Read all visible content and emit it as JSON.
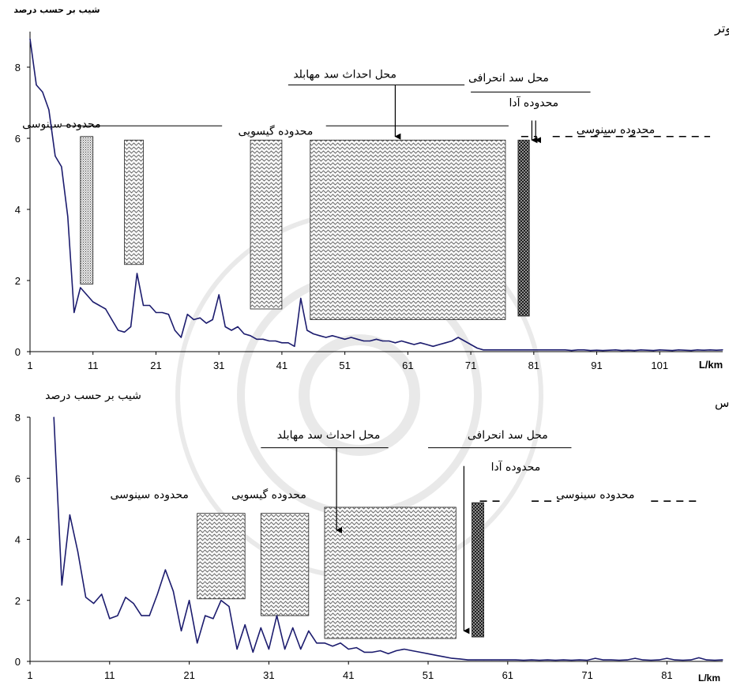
{
  "chart_data": [
    {
      "type": "line",
      "title": "کوتر",
      "ylabel": "شیب بر حسب درصد",
      "xlabel": "L/km",
      "xlim": [
        1,
        111
      ],
      "ylim": [
        0,
        9
      ],
      "x_ticks": [
        "1",
        "11",
        "21",
        "31",
        "41",
        "51",
        "61",
        "71",
        "81",
        "91",
        "101"
      ],
      "y_ticks": [
        "0",
        "2",
        "4",
        "6",
        "8"
      ],
      "grid": false,
      "line_color": "#1c1c6e",
      "series": [
        {
          "points": [
            [
              1,
              8.8
            ],
            [
              2,
              7.5
            ],
            [
              3,
              7.3
            ],
            [
              4,
              6.8
            ],
            [
              5,
              5.5
            ],
            [
              6,
              5.2
            ],
            [
              7,
              3.8
            ],
            [
              8,
              1.1
            ],
            [
              9,
              1.8
            ],
            [
              10,
              1.6
            ],
            [
              11,
              1.4
            ],
            [
              12,
              1.3
            ],
            [
              13,
              1.2
            ],
            [
              14,
              0.9
            ],
            [
              15,
              0.6
            ],
            [
              16,
              0.55
            ],
            [
              17,
              0.7
            ],
            [
              18,
              2.2
            ],
            [
              19,
              1.3
            ],
            [
              20,
              1.3
            ],
            [
              21,
              1.1
            ],
            [
              22,
              1.1
            ],
            [
              23,
              1.05
            ],
            [
              24,
              0.6
            ],
            [
              25,
              0.4
            ],
            [
              26,
              1.05
            ],
            [
              27,
              0.9
            ],
            [
              28,
              0.95
            ],
            [
              29,
              0.8
            ],
            [
              30,
              0.9
            ],
            [
              31,
              1.6
            ],
            [
              32,
              0.7
            ],
            [
              33,
              0.6
            ],
            [
              34,
              0.7
            ],
            [
              35,
              0.5
            ],
            [
              36,
              0.45
            ],
            [
              37,
              0.35
            ],
            [
              38,
              0.35
            ],
            [
              39,
              0.3
            ],
            [
              40,
              0.3
            ],
            [
              41,
              0.25
            ],
            [
              42,
              0.25
            ],
            [
              43,
              0.15
            ],
            [
              44,
              1.5
            ],
            [
              45,
              0.6
            ],
            [
              46,
              0.5
            ],
            [
              47,
              0.45
            ],
            [
              48,
              0.4
            ],
            [
              49,
              0.45
            ],
            [
              50,
              0.4
            ],
            [
              51,
              0.35
            ],
            [
              52,
              0.4
            ],
            [
              53,
              0.35
            ],
            [
              54,
              0.3
            ],
            [
              55,
              0.3
            ],
            [
              56,
              0.35
            ],
            [
              57,
              0.3
            ],
            [
              58,
              0.3
            ],
            [
              59,
              0.25
            ],
            [
              60,
              0.3
            ],
            [
              61,
              0.25
            ],
            [
              62,
              0.2
            ],
            [
              63,
              0.25
            ],
            [
              64,
              0.2
            ],
            [
              65,
              0.15
            ],
            [
              66,
              0.2
            ],
            [
              67,
              0.25
            ],
            [
              68,
              0.3
            ],
            [
              69,
              0.4
            ],
            [
              70,
              0.3
            ],
            [
              71,
              0.2
            ],
            [
              72,
              0.1
            ],
            [
              73,
              0.05
            ],
            [
              74,
              0.05
            ],
            [
              75,
              0.05
            ],
            [
              76,
              0.05
            ],
            [
              77,
              0.05
            ],
            [
              78,
              0.05
            ],
            [
              79,
              0.05
            ],
            [
              80,
              0.05
            ],
            [
              81,
              0.05
            ],
            [
              82,
              0.05
            ],
            [
              83,
              0.05
            ],
            [
              84,
              0.05
            ],
            [
              85,
              0.05
            ],
            [
              86,
              0.05
            ],
            [
              87,
              0.03
            ],
            [
              88,
              0.05
            ],
            [
              89,
              0.05
            ],
            [
              90,
              0.03
            ],
            [
              91,
              0.04
            ],
            [
              92,
              0.03
            ],
            [
              93,
              0.04
            ],
            [
              94,
              0.05
            ],
            [
              95,
              0.03
            ],
            [
              96,
              0.04
            ],
            [
              97,
              0.03
            ],
            [
              98,
              0.05
            ],
            [
              99,
              0.04
            ],
            [
              100,
              0.03
            ],
            [
              101,
              0.05
            ],
            [
              102,
              0.04
            ],
            [
              103,
              0.03
            ],
            [
              104,
              0.05
            ],
            [
              105,
              0.04
            ],
            [
              106,
              0.03
            ],
            [
              107,
              0.05
            ],
            [
              108,
              0.04
            ],
            [
              109,
              0.05
            ],
            [
              110,
              0.04
            ],
            [
              111,
              0.05
            ]
          ]
        }
      ],
      "zones": [
        {
          "x0": 9,
          "x1": 11,
          "y0": 1.9,
          "y1": 6.05,
          "fill": "dots"
        },
        {
          "x0": 16,
          "x1": 19,
          "y0": 2.45,
          "y1": 5.95,
          "fill": "wave"
        },
        {
          "x0": 36,
          "x1": 41,
          "y0": 1.2,
          "y1": 5.95,
          "fill": "wave"
        },
        {
          "x0": 45.5,
          "x1": 76.5,
          "y0": 0.9,
          "y1": 5.95,
          "fill": "wave"
        },
        {
          "x0": 78.5,
          "x1": 80.3,
          "y0": 1.0,
          "y1": 5.95,
          "fill": "cross"
        }
      ],
      "annotations": [
        {
          "text": "محدوده سینوسی",
          "x": 6,
          "y": 6.3,
          "line": [
            6,
            31.5,
            6.35
          ]
        },
        {
          "text": "محدوده گیسویی",
          "x": 40,
          "y": 6.1
        },
        {
          "text": "محل احداث سد مهابلد",
          "x": 51,
          "y": 7.7,
          "line": [
            42,
            70,
            7.5
          ]
        },
        {
          "text": "محل سد انحرافی",
          "x": 77,
          "y": 7.6,
          "line": [
            71,
            90,
            7.3
          ]
        },
        {
          "text": "محدوده آدا",
          "x": 81,
          "y": 6.9
        },
        {
          "text": "محدوده سینوسی",
          "x": 94,
          "y": 6.15
        }
      ],
      "dashes": [
        [
          79,
          81.5,
          6.05
        ],
        [
          84,
          109,
          6.05
        ]
      ],
      "arrows": [
        [
          59,
          7.5,
          6.05
        ],
        [
          80.7,
          6.5,
          5.95
        ],
        [
          81.3,
          6.5,
          5.95
        ]
      ],
      "lines": [
        [
          48,
          77,
          6.35
        ]
      ]
    },
    {
      "type": "line",
      "title": "بیطاس",
      "ylabel": "شیب بر حسب درصد",
      "xlabel": "L/km",
      "xlim": [
        1,
        88
      ],
      "ylim": [
        0,
        8
      ],
      "x_ticks": [
        "1",
        "11",
        "21",
        "31",
        "41",
        "51",
        "61",
        "71",
        "81"
      ],
      "y_ticks": [
        "0",
        "2",
        "4",
        "6",
        "8"
      ],
      "grid": false,
      "line_color": "#1c1c6e",
      "series": [
        {
          "points": [
            [
              4,
              8.0
            ],
            [
              5,
              2.5
            ],
            [
              6,
              4.8
            ],
            [
              7,
              3.6
            ],
            [
              8,
              2.1
            ],
            [
              9,
              1.9
            ],
            [
              10,
              2.2
            ],
            [
              11,
              1.4
            ],
            [
              12,
              1.5
            ],
            [
              13,
              2.1
            ],
            [
              14,
              1.9
            ],
            [
              15,
              1.5
            ],
            [
              16,
              1.5
            ],
            [
              17,
              2.2
            ],
            [
              18,
              3.0
            ],
            [
              19,
              2.3
            ],
            [
              20,
              1.0
            ],
            [
              21,
              2.0
            ],
            [
              22,
              0.6
            ],
            [
              23,
              1.5
            ],
            [
              24,
              1.4
            ],
            [
              25,
              2.0
            ],
            [
              26,
              1.8
            ],
            [
              27,
              0.4
            ],
            [
              28,
              1.2
            ],
            [
              29,
              0.3
            ],
            [
              30,
              1.1
            ],
            [
              31,
              0.4
            ],
            [
              32,
              1.5
            ],
            [
              33,
              0.4
            ],
            [
              34,
              1.1
            ],
            [
              35,
              0.4
            ],
            [
              36,
              1.0
            ],
            [
              37,
              0.6
            ],
            [
              38,
              0.6
            ],
            [
              39,
              0.5
            ],
            [
              40,
              0.6
            ],
            [
              41,
              0.4
            ],
            [
              42,
              0.45
            ],
            [
              43,
              0.3
            ],
            [
              44,
              0.3
            ],
            [
              45,
              0.35
            ],
            [
              46,
              0.25
            ],
            [
              47,
              0.35
            ],
            [
              48,
              0.4
            ],
            [
              49,
              0.35
            ],
            [
              50,
              0.3
            ],
            [
              51,
              0.25
            ],
            [
              52,
              0.2
            ],
            [
              53,
              0.15
            ],
            [
              54,
              0.1
            ],
            [
              55,
              0.08
            ],
            [
              56,
              0.05
            ],
            [
              57,
              0.05
            ],
            [
              58,
              0.05
            ],
            [
              59,
              0.05
            ],
            [
              60,
              0.05
            ],
            [
              61,
              0.05
            ],
            [
              62,
              0.05
            ],
            [
              63,
              0.04
            ],
            [
              64,
              0.05
            ],
            [
              65,
              0.04
            ],
            [
              66,
              0.05
            ],
            [
              67,
              0.04
            ],
            [
              68,
              0.05
            ],
            [
              69,
              0.04
            ],
            [
              70,
              0.05
            ],
            [
              71,
              0.04
            ],
            [
              72,
              0.1
            ],
            [
              73,
              0.05
            ],
            [
              74,
              0.05
            ],
            [
              75,
              0.04
            ],
            [
              76,
              0.05
            ],
            [
              77,
              0.1
            ],
            [
              78,
              0.05
            ],
            [
              79,
              0.04
            ],
            [
              80,
              0.05
            ],
            [
              81,
              0.1
            ],
            [
              82,
              0.05
            ],
            [
              83,
              0.04
            ],
            [
              84,
              0.05
            ],
            [
              85,
              0.12
            ],
            [
              86,
              0.05
            ],
            [
              87,
              0.04
            ],
            [
              88,
              0.05
            ]
          ]
        }
      ],
      "zones": [
        {
          "x0": 22,
          "x1": 28,
          "y0": 2.05,
          "y1": 4.85,
          "fill": "wave"
        },
        {
          "x0": 30,
          "x1": 36,
          "y0": 1.5,
          "y1": 4.85,
          "fill": "wave"
        },
        {
          "x0": 38,
          "x1": 54.5,
          "y0": 0.75,
          "y1": 5.05,
          "fill": "wave"
        },
        {
          "x0": 56.5,
          "x1": 58,
          "y0": 0.8,
          "y1": 5.2,
          "fill": "cross"
        }
      ],
      "annotations": [
        {
          "text": "محدوده سینوسی",
          "x": 16,
          "y": 5.35
        },
        {
          "text": "محدوده گیسویی",
          "x": 31,
          "y": 5.35
        },
        {
          "text": "محل احداث سد مهابلد",
          "x": 38.5,
          "y": 7.3,
          "line": [
            30,
            46,
            7.0
          ]
        },
        {
          "text": "محل سد انحرافی",
          "x": 61,
          "y": 7.3,
          "line": [
            51,
            69,
            7.0
          ]
        },
        {
          "text": "محدوده آدا",
          "x": 62,
          "y": 6.25
        },
        {
          "text": "محدوده سینوسی",
          "x": 72,
          "y": 5.35
        }
      ],
      "dashes": [
        [
          57.5,
          60,
          5.25
        ],
        [
          64,
          67.5,
          5.25
        ],
        [
          79,
          85,
          5.25
        ]
      ],
      "arrows": [
        [
          39.5,
          7.0,
          4.3
        ],
        [
          55.5,
          6.4,
          1.0
        ]
      ],
      "lines": []
    }
  ]
}
